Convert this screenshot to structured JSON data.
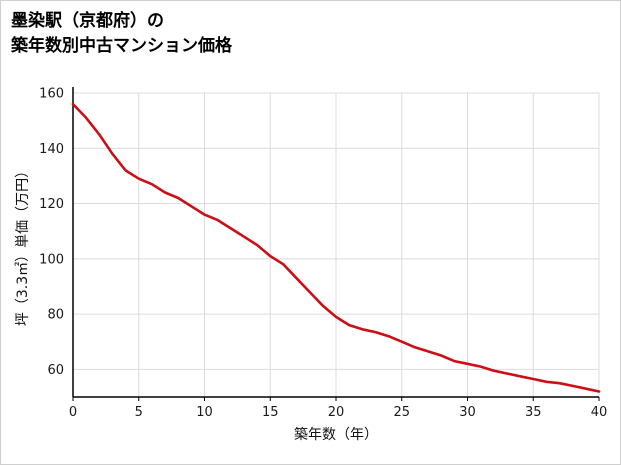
{
  "chart_data": {
    "type": "line",
    "title_lines": [
      "墨染駅（京都府）の",
      "築年数別中古マンション価格"
    ],
    "xlabel": "築年数（年）",
    "ylabel": "坪（3.3㎡）単価（万円）",
    "x": [
      0,
      1,
      2,
      3,
      4,
      5,
      6,
      7,
      8,
      9,
      10,
      11,
      12,
      13,
      14,
      15,
      16,
      17,
      18,
      19,
      20,
      21,
      22,
      23,
      24,
      25,
      26,
      27,
      28,
      29,
      30,
      31,
      32,
      33,
      34,
      35,
      36,
      37,
      38,
      39,
      40
    ],
    "y": [
      156,
      151,
      145,
      138,
      132,
      129,
      127,
      124,
      122,
      119,
      116,
      114,
      111,
      108,
      105,
      101,
      98,
      93,
      88,
      83,
      79,
      76,
      74.5,
      73.5,
      72,
      70,
      68,
      66.5,
      65,
      63,
      62,
      61,
      59.5,
      58.5,
      57.5,
      56.5,
      55.5,
      55,
      54,
      53,
      52
    ],
    "x_ticks": [
      0,
      5,
      10,
      15,
      20,
      25,
      30,
      35,
      40
    ],
    "y_ticks": [
      60,
      80,
      100,
      120,
      140,
      160
    ],
    "xlim": [
      0,
      40
    ],
    "ylim": [
      50,
      160
    ],
    "grid": true,
    "legend": "none",
    "line_color": "#cc0f16",
    "grid_color": "#dcdcdc",
    "axis_color": "#000000",
    "tick_label_color": "#1a1a1a"
  }
}
